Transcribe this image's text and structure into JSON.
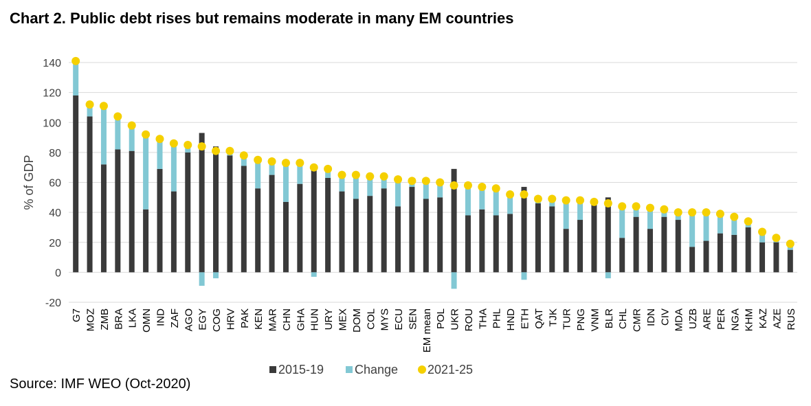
{
  "title": "Chart 2. Public debt rises but remains moderate in many EM countries",
  "source": "Source: IMF WEO (Oct-2020)",
  "colors": {
    "base": "#3a3a3a",
    "change": "#82c8d4",
    "marker": "#f5d000",
    "grid": "#d9d9d9"
  },
  "chart_data": {
    "type": "bar",
    "ylabel": "% of GDP",
    "ylim": [
      -20,
      140
    ],
    "yticks": [
      -20,
      0,
      20,
      40,
      60,
      80,
      100,
      120,
      140
    ],
    "grid": true,
    "legend_position": "bottom",
    "categories": [
      "G7",
      "MOZ",
      "ZMB",
      "BRA",
      "LKA",
      "OMN",
      "IND",
      "ZAF",
      "AGO",
      "EGY",
      "COG",
      "HRV",
      "PAK",
      "KEN",
      "MAR",
      "CHN",
      "GHA",
      "HUN",
      "URY",
      "MEX",
      "DOM",
      "COL",
      "MYS",
      "ECU",
      "SEN",
      "EM mean",
      "POL",
      "UKR",
      "ROU",
      "THA",
      "PHL",
      "HND",
      "ETH",
      "QAT",
      "TJK",
      "TUR",
      "PNG",
      "VNM",
      "BLR",
      "CHL",
      "CMR",
      "IDN",
      "CIV",
      "MDA",
      "UZB",
      "ARE",
      "PER",
      "NGA",
      "KHM",
      "KAZ",
      "AZE",
      "RUS"
    ],
    "series": [
      {
        "name": "2015-19",
        "values": [
          118,
          104,
          72,
          82,
          81,
          42,
          69,
          54,
          80,
          93,
          84,
          78,
          71,
          56,
          65,
          47,
          59,
          72,
          63,
          54,
          49,
          51,
          56,
          44,
          57,
          49,
          50,
          69,
          38,
          42,
          38,
          39,
          57,
          46,
          44,
          29,
          35,
          45,
          50,
          23,
          37,
          29,
          37,
          35,
          17,
          21,
          26,
          25,
          30,
          20,
          20,
          15
        ]
      },
      {
        "name": "Change",
        "values": [
          23,
          8,
          39,
          22,
          17,
          50,
          20,
          32,
          5,
          -9,
          -4,
          3,
          7,
          19,
          9,
          26,
          14,
          -3,
          6,
          11,
          16,
          13,
          8,
          18,
          4,
          12,
          10,
          -11,
          20,
          15,
          18,
          13,
          -5,
          3,
          5,
          19,
          13,
          2,
          -4,
          21,
          7,
          14,
          5,
          5,
          23,
          19,
          13,
          12,
          4,
          7,
          3,
          4
        ]
      },
      {
        "name": "2021-25",
        "values": [
          141,
          112,
          111,
          104,
          98,
          92,
          89,
          86,
          85,
          84,
          81,
          81,
          78,
          75,
          74,
          73,
          73,
          70,
          69,
          65,
          65,
          64,
          64,
          62,
          61,
          61,
          60,
          58,
          58,
          57,
          56,
          52,
          52,
          49,
          49,
          48,
          48,
          47,
          46,
          44,
          44,
          43,
          42,
          40,
          40,
          40,
          39,
          37,
          34,
          27,
          23,
          19
        ]
      }
    ]
  }
}
